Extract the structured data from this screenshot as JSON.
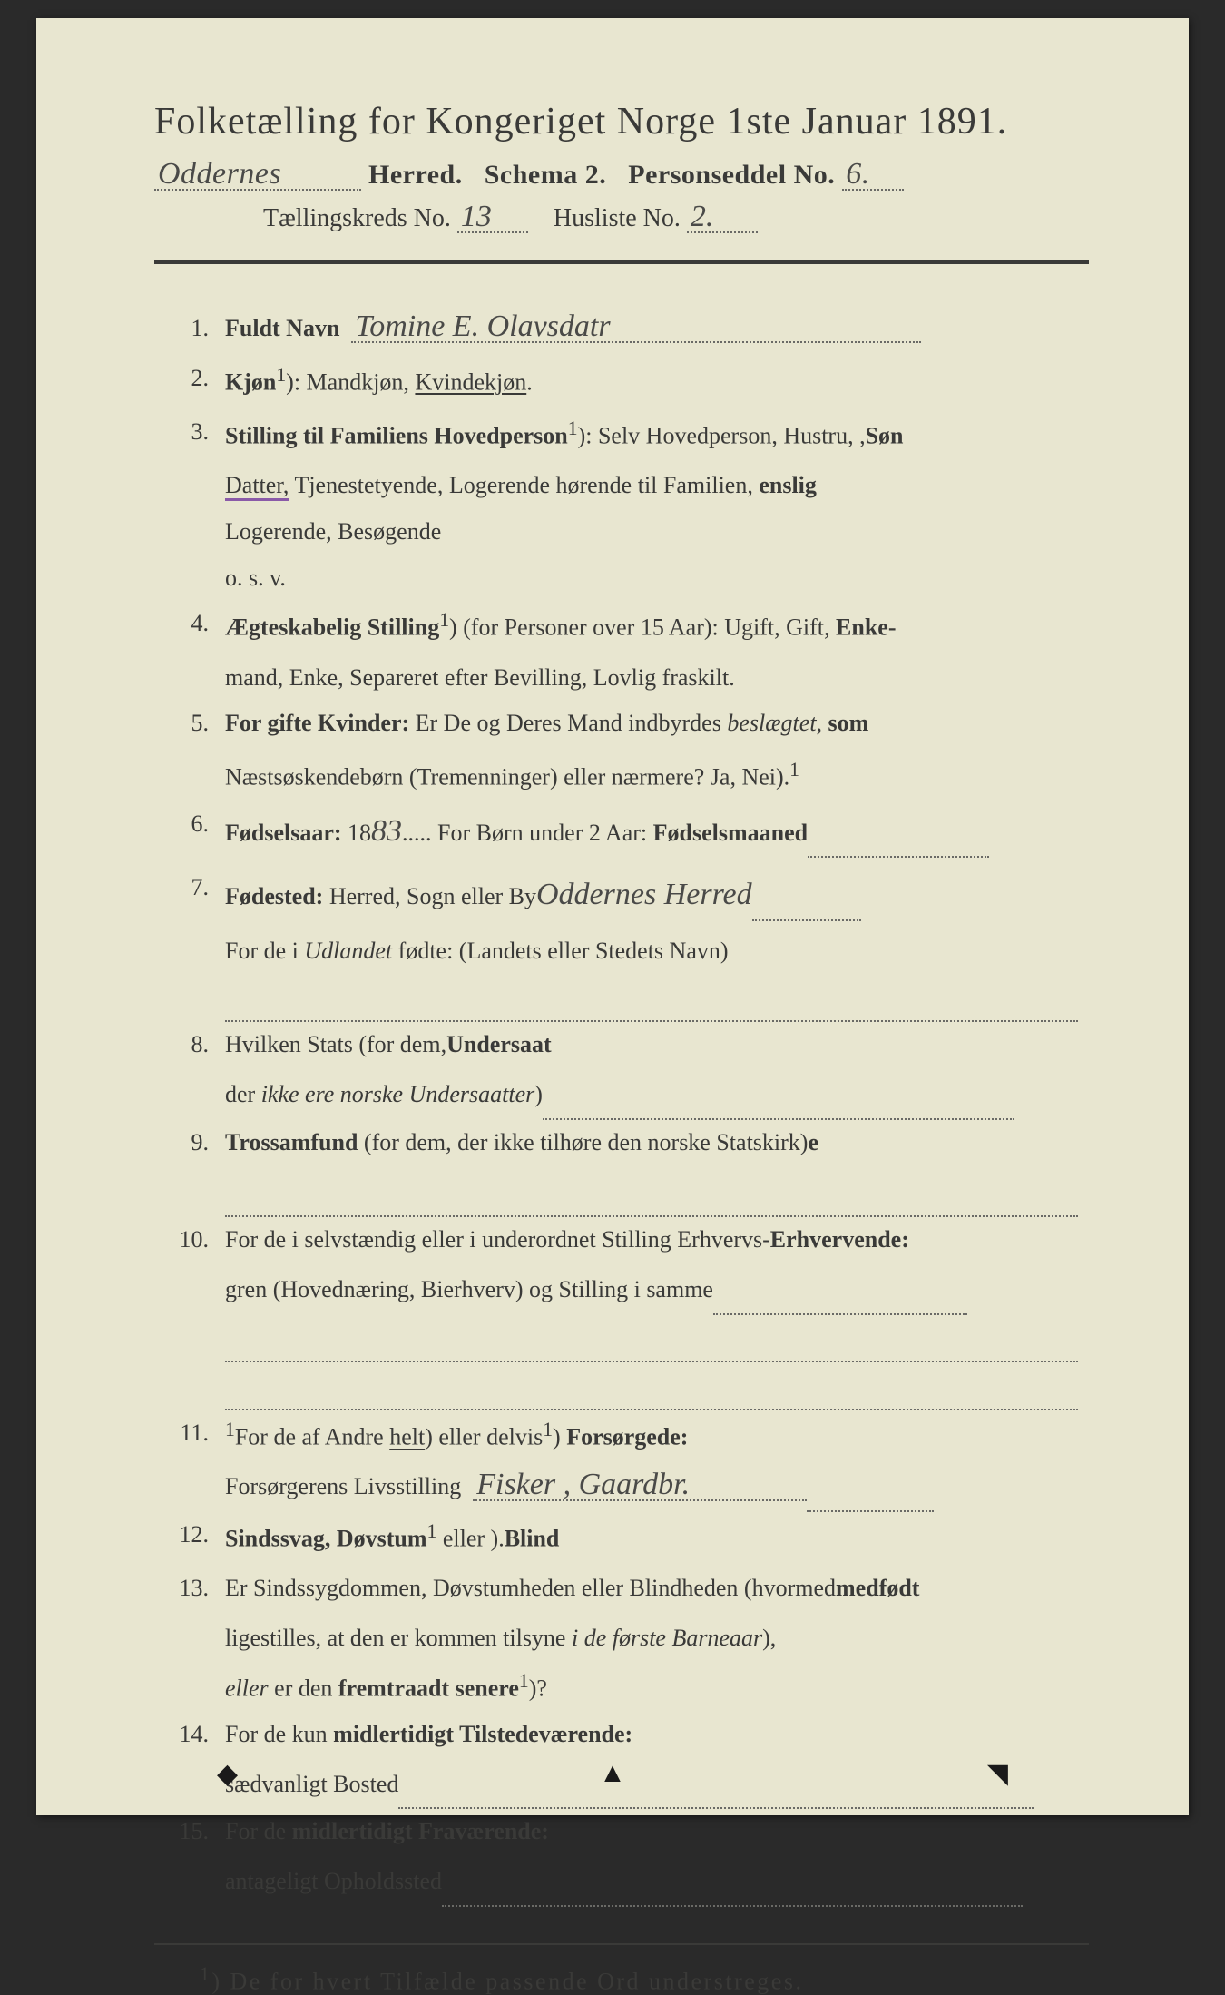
{
  "colors": {
    "page_bg": "#e8e6d0",
    "outer_bg": "#2a2a2a",
    "text": "#3a3a38",
    "handwriting": "#4a4a48",
    "underline_purple": "#8a5aa8",
    "dot": "#6a6a66"
  },
  "typography": {
    "title_pt": 42,
    "subtitle_pt": 30,
    "body_pt": 26,
    "footnote_pt": 26,
    "handwritten_pt": 34
  },
  "header": {
    "title": "Folketælling for Kongeriget Norge 1ste Januar 1891.",
    "herred_hand": "Oddernes",
    "line2_a": "Herred.",
    "line2_b": "Schema 2.",
    "line2_c": "Personseddel No.",
    "personseddel_no": "6.",
    "line3_a": "Tællingskreds No.",
    "tkreds_no": "13",
    "line3_b": "Husliste No.",
    "husliste_no": "2."
  },
  "items": [
    {
      "n": "1.",
      "label": "Fuldt Navn",
      "tail_hand": "Tomine  E.  Olavsdatr"
    },
    {
      "n": "2.",
      "label": "Kjøn",
      "sup": "1",
      "text": "): Mandkjøn, ",
      "uline": "Kvindekjøn",
      "after": "."
    },
    {
      "n": "3.",
      "label": "Stilling til Familiens Hovedperson",
      "sup": "1",
      "text": "): Selv Hovedperson, Hustru, ",
      "b1": "Søn",
      "after1": ",",
      "cont1_pre": "",
      "cont1_uline": "Datter,",
      "cont1": " Tjenestetyende, Logerende hørende til Familien, ",
      "cont1_b": "enslig",
      "cont2": "Logerende, Besøgende",
      "cont3": "o. s. v."
    },
    {
      "n": "4.",
      "label": "Ægteskabelig Stilling",
      "sup": "1",
      "text": ") (for Personer over 15 Aar): Ugift, Gift, ",
      "b1": "Enke-",
      "cont1": "mand, Enke, Separeret efter Bevilling, Lovlig fraskilt."
    },
    {
      "n": "5.",
      "label": "For gifte Kvinder:",
      "text": " Er De og Deres Mand indbyrdes ",
      "i1": "beslægtet",
      "after1": ", ",
      "b1": "som",
      "cont1": "Næstsøskendebørn (Tremenninger) eller nærmere?  Ja, Nei",
      "cont1_sup": "1",
      "cont1_after": ")."
    },
    {
      "n": "6.",
      "label": "Fødselsaar:",
      "text": " 18",
      "hand": "83",
      "after": ".....   For Børn under 2 Aar: ",
      "b1": "Fødselsmaaned",
      "dots_w": 200
    },
    {
      "n": "7.",
      "label": "Fødested:",
      "text": " Herred, Sogn eller By",
      "hand": "Oddernes   Herred",
      "dots_w": 120,
      "cont1": "For de i ",
      "cont1_i": "Udlandet",
      "cont1_after": " fødte: (Landets eller Stedets Navn)",
      "cont2_dots": true
    },
    {
      "n": "8.",
      "text": "Hvilken Stats ",
      "b1": "Undersaat",
      "after1": " (for dem,",
      "cont1": "der ",
      "cont1_i": "ikke ere norske Undersaatter",
      "cont1_after": ")",
      "cont1_dots": 520
    },
    {
      "n": "9.",
      "label": "Trossamfund",
      "text": " (for dem, der ikke tilhøre den norske Statskirk",
      "b1": "e",
      "after1": ")",
      "cont2_dots": true
    },
    {
      "n": "10.",
      "text": "For de i selvstændig eller i underordnet Stilling ",
      "b1": "Erhvervende:",
      "after1": " Erhvervs-",
      "cont1": "gren (Hovednæring, Bierhverv) og Stilling i samme",
      "cont1_dots": 280,
      "cont2_dots": true,
      "cont3_dots": true
    },
    {
      "n": "11.",
      "text": "For de af Andre ",
      "uline": "helt",
      "sup": "1",
      "mid": ") eller delvis",
      "sup2": "1",
      "after": ") ",
      "b1": "Forsørgede:",
      "cont1": "Forsørgerens Livsstilling",
      "cont1_hand": "Fisker ,   Gaardbr.",
      "cont1_dots": 140
    },
    {
      "n": "12.",
      "label": "Sindssvag, Døvstum",
      "text": " eller ",
      "b1": "Blind",
      "sup": "1",
      "after": ")."
    },
    {
      "n": "13.",
      "text": "Er Sindssygdommen, Døvstumheden eller Blindheden ",
      "b1": "medfødt",
      "after1": " (hvormed",
      "cont1": "ligestilles, at den er kommen tilsyne ",
      "cont1_i": "i de første Barneaar",
      "cont1_after": "),",
      "cont2_i": "eller",
      "cont2": " er den ",
      "cont2_b": "fremtraadt senere",
      "cont2_sup": "1",
      "cont2_after": ")?"
    },
    {
      "n": "14.",
      "text": "For de kun ",
      "b1": "midlertidigt Tilstedeværende:",
      "cont1": "sædvanligt Bosted",
      "cont1_dots": 700
    },
    {
      "n": "15.",
      "text": "For de ",
      "b1": "midlertidigt Fraværende:",
      "cont1": "antageligt Opholdssted",
      "cont1_dots": 640
    }
  ],
  "footnote": {
    "sup": "1",
    "text": ") De for hvert Tilfælde passende Ord understreges."
  }
}
